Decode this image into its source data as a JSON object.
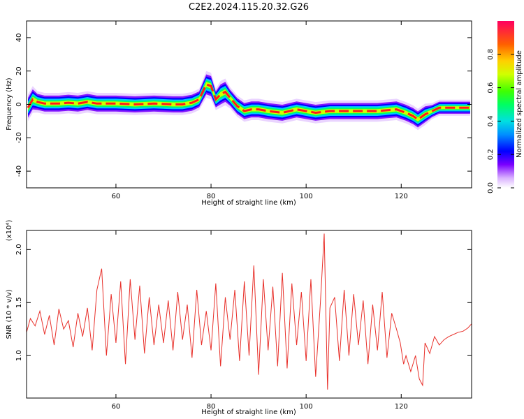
{
  "title": "C2E2.2024.115.20.32.G26",
  "colors": {
    "snr_line": "#e8302a",
    "ridge_core": "#ff1a1a",
    "background": "#ffffff",
    "axis": "#000000"
  },
  "chart_data": [
    {
      "type": "heatmap",
      "xlabel": "Height of straight line (km)",
      "ylabel": "Frequency (Hz)",
      "xlim": [
        41.2,
        134.8
      ],
      "ylim": [
        -50,
        50
      ],
      "xticks": [
        60,
        80,
        100,
        120
      ],
      "yticks": [
        -40,
        -20,
        0,
        20,
        40
      ],
      "colorbar": {
        "label": "Normalized spectral amplitude",
        "range": [
          0.0,
          1.0
        ],
        "ticks": [
          "0.0",
          "0.2",
          "0.4",
          "0.6",
          "0.8"
        ],
        "colormap": "rainbow"
      },
      "ridge": {
        "height_km": [
          41.5,
          42.5,
          43.5,
          45,
          48,
          50,
          52,
          54,
          56,
          60,
          64,
          68,
          72,
          74,
          76,
          77.5,
          79,
          80,
          81,
          82,
          83,
          84,
          85.5,
          87,
          88.5,
          90,
          92,
          95,
          98,
          100,
          102,
          105,
          110,
          115,
          119,
          121,
          122.5,
          123.5,
          125,
          126.5,
          128,
          130,
          134.5
        ],
        "frequency_hz": [
          -2,
          3,
          1.5,
          0.5,
          0.5,
          1,
          0.5,
          1.5,
          0.5,
          0.5,
          0,
          0.5,
          0,
          0,
          1,
          3,
          12,
          11,
          3,
          6,
          7.5,
          4,
          -1,
          -4,
          -3,
          -3,
          -4,
          -5,
          -3,
          -4,
          -5,
          -4,
          -4,
          -4,
          -3,
          -5,
          -7,
          -9,
          -6,
          -4,
          -2,
          -2,
          -2
        ],
        "width_hz": [
          5,
          5,
          4,
          4,
          4,
          4,
          4,
          4,
          4,
          4,
          4,
          4,
          4,
          4,
          4,
          4,
          5,
          5,
          4,
          5,
          5,
          4,
          4,
          4,
          4,
          4,
          4,
          4,
          4,
          4,
          4,
          4,
          4,
          4,
          4,
          4,
          4,
          4,
          4,
          3,
          3,
          3,
          3
        ]
      }
    },
    {
      "type": "line",
      "xlabel": "Height of straight line (km)",
      "ylabel": "SNR (10 * v/v)",
      "y_multiplier": "(x10⁴)",
      "xlim": [
        41.2,
        134.8
      ],
      "ylim": [
        0.6,
        2.18
      ],
      "xticks": [
        60,
        80,
        100,
        120
      ],
      "yticks": [
        1.0,
        1.5,
        2.0
      ],
      "series": [
        {
          "x": [
            41.2,
            42,
            43,
            44,
            45,
            46,
            47,
            48,
            49,
            50,
            51,
            52,
            53,
            54,
            55,
            56,
            57,
            58,
            59,
            60,
            61,
            62,
            63,
            64,
            65,
            66,
            67,
            68,
            69,
            70,
            71,
            72,
            73,
            74,
            75,
            76,
            77,
            78,
            79,
            80,
            81,
            82,
            83,
            84,
            85,
            86,
            87,
            88,
            89,
            90,
            91,
            92,
            93,
            94,
            95,
            96,
            97,
            98,
            99,
            100,
            101,
            102,
            103,
            103.8,
            104.5,
            105,
            106,
            107,
            108,
            109,
            110,
            111,
            112,
            113,
            114,
            115,
            116,
            117,
            118,
            119,
            119.8,
            120.5,
            121,
            122,
            123,
            123.8,
            124.5,
            125,
            126,
            127,
            128,
            129,
            130,
            131,
            132,
            133,
            134,
            134.8
          ],
          "y": [
            1.22,
            1.35,
            1.28,
            1.42,
            1.2,
            1.38,
            1.1,
            1.44,
            1.25,
            1.33,
            1.08,
            1.4,
            1.18,
            1.45,
            1.05,
            1.62,
            1.82,
            1.0,
            1.58,
            1.12,
            1.7,
            0.92,
            1.72,
            1.15,
            1.66,
            1.02,
            1.55,
            1.1,
            1.48,
            1.12,
            1.52,
            1.05,
            1.6,
            1.15,
            1.48,
            0.98,
            1.62,
            1.1,
            1.42,
            1.05,
            1.68,
            0.9,
            1.55,
            1.15,
            1.62,
            0.95,
            1.7,
            1.0,
            1.85,
            0.82,
            1.72,
            1.05,
            1.65,
            0.9,
            1.78,
            0.88,
            1.68,
            1.1,
            1.6,
            0.95,
            1.72,
            0.8,
            1.5,
            2.15,
            0.68,
            1.45,
            1.55,
            0.95,
            1.62,
            1.0,
            1.58,
            1.1,
            1.52,
            0.92,
            1.48,
            1.05,
            1.6,
            0.98,
            1.4,
            1.25,
            1.12,
            0.92,
            1.0,
            0.85,
            1.0,
            0.78,
            0.72,
            1.12,
            1.02,
            1.18,
            1.1,
            1.15,
            1.18,
            1.2,
            1.22,
            1.23,
            1.26,
            1.3
          ]
        }
      ]
    }
  ]
}
